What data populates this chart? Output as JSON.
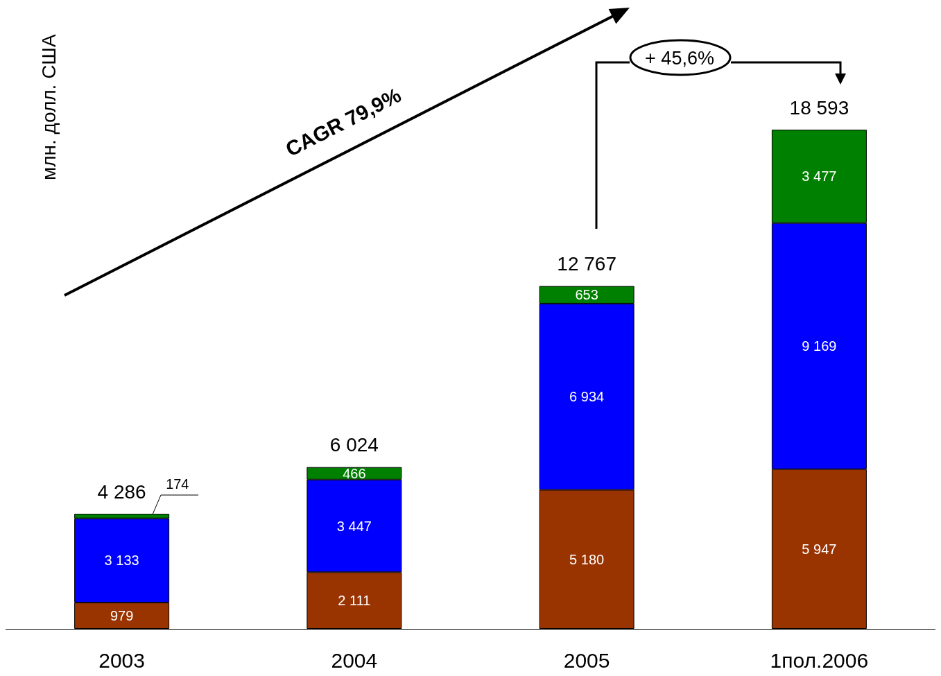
{
  "chart_data": {
    "type": "bar",
    "stacked": true,
    "ylabel": "млн. долл. США",
    "categories": [
      "2003",
      "2004",
      "2005",
      "1пол.2006"
    ],
    "series": [
      {
        "color": "#993300",
        "values": [
          979,
          2111,
          5180,
          5947
        ]
      },
      {
        "color": "#0000ff",
        "values": [
          3133,
          3447,
          6934,
          9169
        ]
      },
      {
        "color": "#008000",
        "values": [
          174,
          466,
          653,
          3477
        ]
      }
    ],
    "data_labels": true,
    "totals": [
      "4 286",
      "6 024",
      "12 767",
      "18 593"
    ],
    "annotations": [
      "CAGR 79,9%",
      "+ 45,6%"
    ]
  }
}
